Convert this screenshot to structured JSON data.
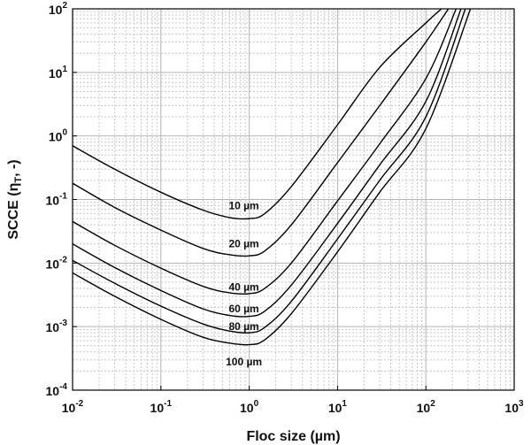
{
  "chart_data": {
    "type": "line",
    "title": "",
    "xlabel": "Floc size (µm)",
    "ylabel_main": "SCCE (η",
    "ylabel_sub": "T",
    "ylabel_tail": ", -)",
    "x_scale": "log",
    "y_scale": "log",
    "xlim": [
      0.01,
      1000
    ],
    "ylim": [
      0.0001,
      100
    ],
    "grid": true,
    "minor_grid": true,
    "x_ticks": [
      {
        "base": "10",
        "exp": "-2",
        "value": 0.01
      },
      {
        "base": "10",
        "exp": "-1",
        "value": 0.1
      },
      {
        "base": "10",
        "exp": "0",
        "value": 1
      },
      {
        "base": "10",
        "exp": "1",
        "value": 10
      },
      {
        "base": "10",
        "exp": "2",
        "value": 100
      },
      {
        "base": "10",
        "exp": "3",
        "value": 1000
      }
    ],
    "y_ticks": [
      {
        "base": "10",
        "exp": "-4",
        "value": 0.0001
      },
      {
        "base": "10",
        "exp": "-3",
        "value": 0.001
      },
      {
        "base": "10",
        "exp": "-2",
        "value": 0.01
      },
      {
        "base": "10",
        "exp": "-1",
        "value": 0.1
      },
      {
        "base": "10",
        "exp": "0",
        "value": 1
      },
      {
        "base": "10",
        "exp": "1",
        "value": 10
      },
      {
        "base": "10",
        "exp": "2",
        "value": 100
      }
    ],
    "series": [
      {
        "label": "10 µm",
        "label_at": [
          1.0,
          0.08
        ],
        "x": [
          0.01,
          0.03,
          0.1,
          0.3,
          0.6,
          1.0,
          1.5,
          3,
          10,
          30,
          100,
          150
        ],
        "y": [
          0.7,
          0.3,
          0.13,
          0.068,
          0.052,
          0.05,
          0.06,
          0.16,
          1.5,
          12,
          60,
          100
        ]
      },
      {
        "label": "20 µm",
        "label_at": [
          1.0,
          0.02
        ],
        "x": [
          0.01,
          0.03,
          0.1,
          0.3,
          0.6,
          1.0,
          1.5,
          3,
          10,
          30,
          100,
          180
        ],
        "y": [
          0.18,
          0.075,
          0.033,
          0.017,
          0.0135,
          0.013,
          0.0155,
          0.04,
          0.38,
          3,
          30,
          100
        ]
      },
      {
        "label": "40 µm",
        "label_at": [
          1.0,
          0.0042
        ],
        "x": [
          0.01,
          0.03,
          0.1,
          0.3,
          0.6,
          1.0,
          1.5,
          3,
          10,
          30,
          100,
          220
        ],
        "y": [
          0.045,
          0.019,
          0.0083,
          0.0043,
          0.0034,
          0.0033,
          0.004,
          0.01,
          0.095,
          0.75,
          8,
          100
        ]
      },
      {
        "label": "60 µm",
        "label_at": [
          1.0,
          0.0019
        ],
        "x": [
          0.01,
          0.03,
          0.1,
          0.3,
          0.6,
          1.0,
          1.5,
          3,
          10,
          30,
          100,
          250
        ],
        "y": [
          0.02,
          0.0085,
          0.0037,
          0.0019,
          0.0015,
          0.00145,
          0.00175,
          0.0045,
          0.042,
          0.35,
          3.5,
          100
        ]
      },
      {
        "label": "80 µm",
        "label_at": [
          1.0,
          0.001
        ],
        "x": [
          0.01,
          0.03,
          0.1,
          0.3,
          0.6,
          1.0,
          1.5,
          3,
          10,
          30,
          100,
          280
        ],
        "y": [
          0.011,
          0.0048,
          0.0021,
          0.0011,
          0.00085,
          0.0008,
          0.00097,
          0.0025,
          0.024,
          0.2,
          2,
          100
        ]
      },
      {
        "label": "100 µm",
        "label_at": [
          1.0,
          0.00028
        ],
        "x": [
          0.01,
          0.03,
          0.1,
          0.3,
          0.6,
          1.0,
          1.5,
          3,
          10,
          30,
          100,
          320
        ],
        "y": [
          0.007,
          0.003,
          0.0013,
          0.00068,
          0.00055,
          0.00052,
          0.00062,
          0.0016,
          0.015,
          0.13,
          1.3,
          100
        ]
      }
    ]
  }
}
